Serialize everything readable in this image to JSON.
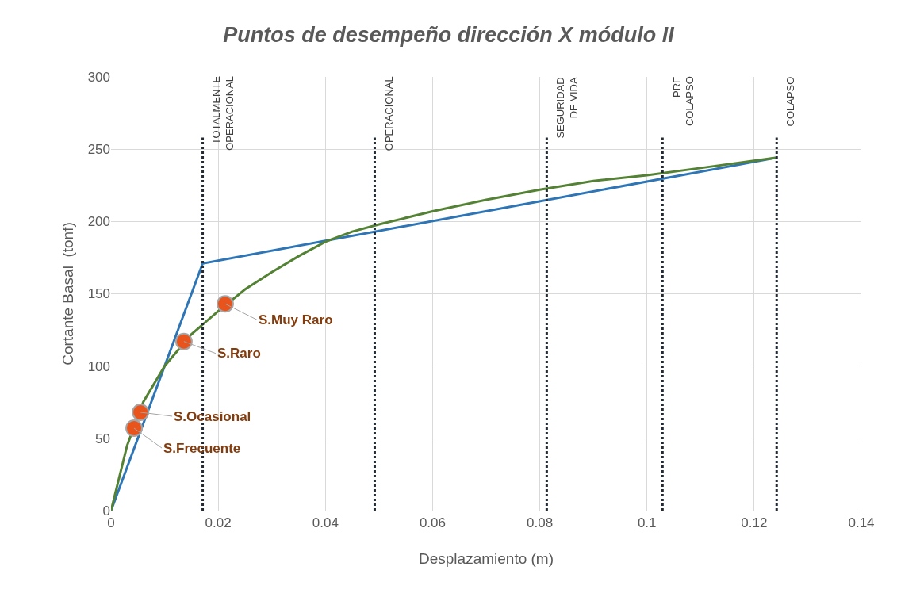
{
  "chart_data": {
    "type": "line",
    "title": "Puntos de desempeño dirección X módulo II",
    "xlabel": "Desplazamiento (m)",
    "ylabel": "Cortante Basal  (tonf)",
    "xlim": [
      0,
      0.14
    ],
    "xticks": [
      0,
      0.02,
      0.04,
      0.06,
      0.08,
      0.1,
      0.12,
      0.14
    ],
    "ylim": [
      0,
      300
    ],
    "yticks": [
      0,
      50,
      100,
      150,
      200,
      250,
      300
    ],
    "grid": true,
    "series": [
      {
        "color": "#2e75b6",
        "x": [
          0,
          0.0171,
          0.124
        ],
        "values": [
          0,
          171,
          244
        ]
      },
      {
        "color": "#548235",
        "x": [
          0,
          0.003,
          0.006,
          0.01,
          0.015,
          0.02,
          0.025,
          0.03,
          0.035,
          0.04,
          0.045,
          0.05,
          0.06,
          0.07,
          0.08,
          0.09,
          0.1,
          0.11,
          0.124
        ],
        "values": [
          0,
          45,
          75,
          100,
          122,
          138,
          153,
          165,
          176,
          186,
          193,
          198,
          207,
          215,
          222,
          228,
          232,
          237,
          244
        ]
      },
      {
        "type": "scatter",
        "color": "#e8541c",
        "marker": "circle",
        "x": [
          0.0043,
          0.0055,
          0.0136,
          0.0213
        ],
        "values": [
          57,
          68,
          117,
          143
        ]
      }
    ],
    "annotations": [
      {
        "text": "S.Frecuente",
        "x": 0.0043,
        "y": 57
      },
      {
        "text": "S.Ocasional",
        "x": 0.0055,
        "y": 68
      },
      {
        "text": "S.Raro",
        "x": 0.0136,
        "y": 117
      },
      {
        "text": "S.Muy Raro",
        "x": 0.0213,
        "y": 143
      }
    ],
    "ref_lines": [
      {
        "axis": "x",
        "value": 0.0171,
        "label": "TOTALMENTE\nOPERACIONAL",
        "color": "#222a35",
        "line_style": "dotted"
      },
      {
        "axis": "x",
        "value": 0.0492,
        "label": "OPERACIONAL",
        "color": "#222a35",
        "line_style": "dotted"
      },
      {
        "axis": "x",
        "value": 0.0813,
        "label": "SEGURIDAD\nDE VIDA",
        "color": "#222a35",
        "line_style": "dotted"
      },
      {
        "axis": "x",
        "value": 0.1029,
        "label": "PRE\nCOLAPSO",
        "color": "#222a35",
        "line_style": "dotted"
      },
      {
        "axis": "x",
        "value": 0.1242,
        "label": "COLAPSO",
        "color": "#222a35",
        "line_style": "dotted"
      }
    ]
  }
}
